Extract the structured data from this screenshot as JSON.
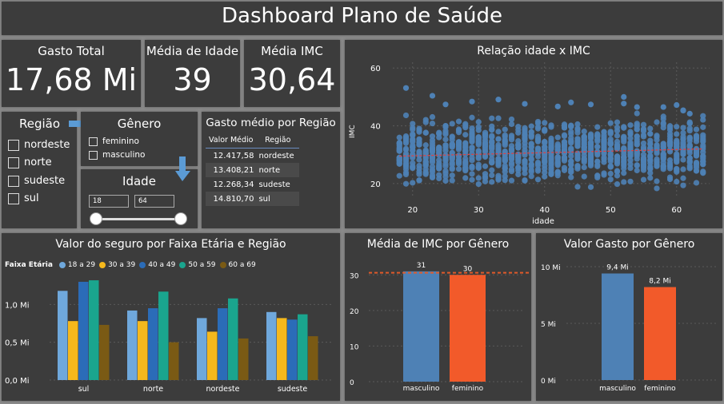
{
  "title": "Dashboard Plano de Saúde",
  "kpis": [
    {
      "label": "Gasto Total",
      "value": "17,68 Mi"
    },
    {
      "label": "Média de Idade",
      "value": "39"
    },
    {
      "label": "Média IMC",
      "value": "30,64"
    }
  ],
  "filters": {
    "regiao": {
      "title": "Região",
      "options": [
        "nordeste",
        "norte",
        "sudeste",
        "sul"
      ]
    },
    "genero": {
      "title": "Gênero",
      "options": [
        "feminino",
        "masculino"
      ]
    },
    "idade": {
      "title": "Idade",
      "min": "18",
      "max": "64"
    }
  },
  "gasto_medio": {
    "title": "Gasto médio por Região",
    "headers": [
      "Valor Médio",
      "Região"
    ],
    "rows": [
      [
        "12.417,58",
        "nordeste"
      ],
      [
        "13.408,21",
        "norte"
      ],
      [
        "12.268,34",
        "sudeste"
      ],
      [
        "14.810,70",
        "sul"
      ]
    ]
  },
  "colors": {
    "blue": "#4e81b5",
    "orange": "#f25a2a",
    "fe_18_29": "#6fa8dc",
    "fe_30_39": "#f5b81c",
    "fe_40_49": "#2b6cb8",
    "fe_50_59": "#1aa58e",
    "fe_60_69": "#7a5a14"
  },
  "chart_data": [
    {
      "type": "scatter",
      "title": "Relação idade x IMC",
      "xlabel": "idade",
      "ylabel": "IMC",
      "xlim": [
        17,
        65
      ],
      "ylim": [
        15,
        62
      ],
      "xticks": [
        20,
        30,
        40,
        50,
        60
      ],
      "yticks": [
        20,
        40,
        60
      ],
      "x_range": [
        18,
        64
      ],
      "y_range": [
        16,
        53
      ],
      "trendline": [
        [
          18,
          29.5
        ],
        [
          64,
          32.0
        ]
      ],
      "outliers": [
        [
          19,
          53.1
        ],
        [
          23,
          50.4
        ],
        [
          33,
          49.1
        ],
        [
          37,
          47.6
        ],
        [
          42,
          46.7
        ],
        [
          47,
          47.4
        ],
        [
          52,
          47.7
        ],
        [
          54,
          46.5
        ],
        [
          58,
          46.5
        ],
        [
          60,
          47.2
        ],
        [
          61,
          45.4
        ],
        [
          62,
          44.2
        ],
        [
          44,
          48.1
        ],
        [
          29,
          48.4
        ],
        [
          25,
          47.4
        ],
        [
          52,
          50.0
        ]
      ]
    },
    {
      "type": "bar",
      "title": "Valor do seguro por Faixa Etária e Região",
      "legend_title": "Faixa Etária",
      "categories": [
        "sul",
        "norte",
        "nordeste",
        "sudeste"
      ],
      "yticks": [
        "0,0 Mi",
        "0,5 Mi",
        "1,0 Mi"
      ],
      "ylim": [
        0,
        1.5
      ],
      "series": [
        {
          "name": "18 a 29",
          "values": [
            1.18,
            0.92,
            0.82,
            0.9
          ]
        },
        {
          "name": "30 a 39",
          "values": [
            0.78,
            0.78,
            0.64,
            0.82
          ]
        },
        {
          "name": "40 a 49",
          "values": [
            1.3,
            0.95,
            0.95,
            0.8
          ]
        },
        {
          "name": "50 a 59",
          "values": [
            1.32,
            1.17,
            1.08,
            0.87
          ]
        },
        {
          "name": "60 a 69",
          "values": [
            0.73,
            0.5,
            0.55,
            0.58
          ]
        }
      ]
    },
    {
      "type": "bar",
      "title": "Média de IMC por Gênero",
      "categories": [
        "masculino",
        "feminino"
      ],
      "values": [
        31,
        30
      ],
      "labels": [
        "31",
        "30"
      ],
      "yticks": [
        0,
        10,
        20,
        30
      ],
      "ylim": [
        0,
        35
      ],
      "reference_line": 30.6
    },
    {
      "type": "bar",
      "title": "Valor Gasto por Gênero",
      "categories": [
        "masculino",
        "feminino"
      ],
      "values": [
        9.4,
        8.2
      ],
      "labels": [
        "9,4 Mi",
        "8,2 Mi"
      ],
      "yticks": [
        "0 Mi",
        "5 Mi",
        "10 Mi"
      ],
      "ylim": [
        0,
        10
      ]
    }
  ]
}
